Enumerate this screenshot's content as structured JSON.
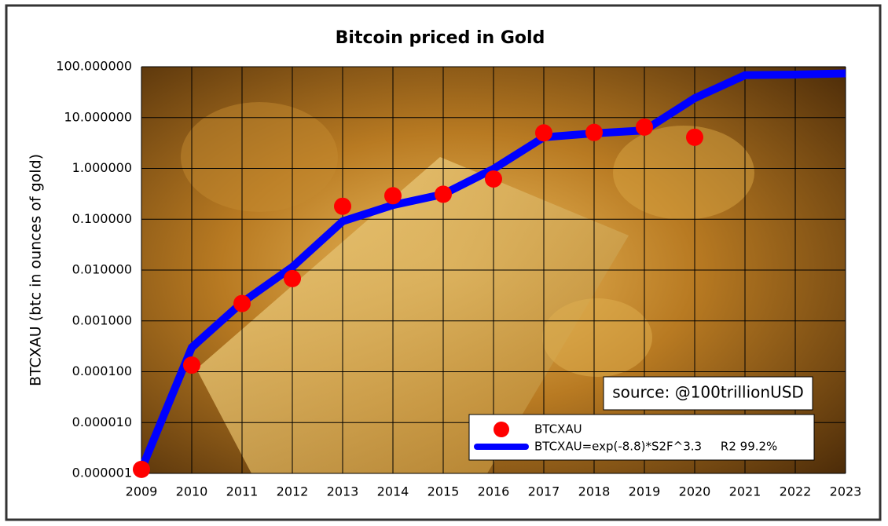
{
  "chart_data": {
    "type": "line",
    "title": "Bitcoin priced in Gold",
    "ylabel": "BTCXAU (btc in ounces of gold)",
    "annotation": "source: @100trillionUSD",
    "x": [
      2009,
      2010,
      2011,
      2012,
      2013,
      2014,
      2015,
      2016,
      2017,
      2018,
      2019,
      2020,
      2021,
      2022,
      2023
    ],
    "series": [
      {
        "name": "BTCXAU",
        "type": "scatter",
        "color": "#ff0000",
        "values": [
          1.2e-06,
          0.000135,
          0.0022,
          0.0068,
          0.18,
          0.29,
          0.31,
          0.62,
          5.0,
          5.1,
          6.5,
          4.1,
          null,
          null,
          null
        ]
      },
      {
        "name": "BTCXAU=exp(-8.8)*S2F^3.3     R2 99.2%",
        "type": "line",
        "color": "#0000ff",
        "values": [
          1.2e-06,
          0.0003,
          0.0023,
          0.0115,
          0.091,
          0.19,
          0.31,
          0.98,
          4.1,
          4.9,
          5.6,
          24,
          68,
          70,
          74
        ]
      }
    ],
    "xlim": [
      2009,
      2023
    ],
    "xticks": [
      2009,
      2010,
      2011,
      2012,
      2013,
      2014,
      2015,
      2016,
      2017,
      2018,
      2019,
      2020,
      2021,
      2022,
      2023
    ],
    "ylim": [
      1e-06,
      100
    ],
    "yticks": [
      {
        "value": 1e-06,
        "label": "0.000001"
      },
      {
        "value": 1e-05,
        "label": "0.000010"
      },
      {
        "value": 0.0001,
        "label": "0.000100"
      },
      {
        "value": 0.001,
        "label": "0.001000"
      },
      {
        "value": 0.01,
        "label": "0.010000"
      },
      {
        "value": 0.1,
        "label": "0.100000"
      },
      {
        "value": 1,
        "label": "1.000000"
      },
      {
        "value": 10,
        "label": "10.000000"
      },
      {
        "value": 100,
        "label": "100.000000"
      }
    ],
    "log_y": true,
    "grid": true,
    "legend": "lower right"
  }
}
